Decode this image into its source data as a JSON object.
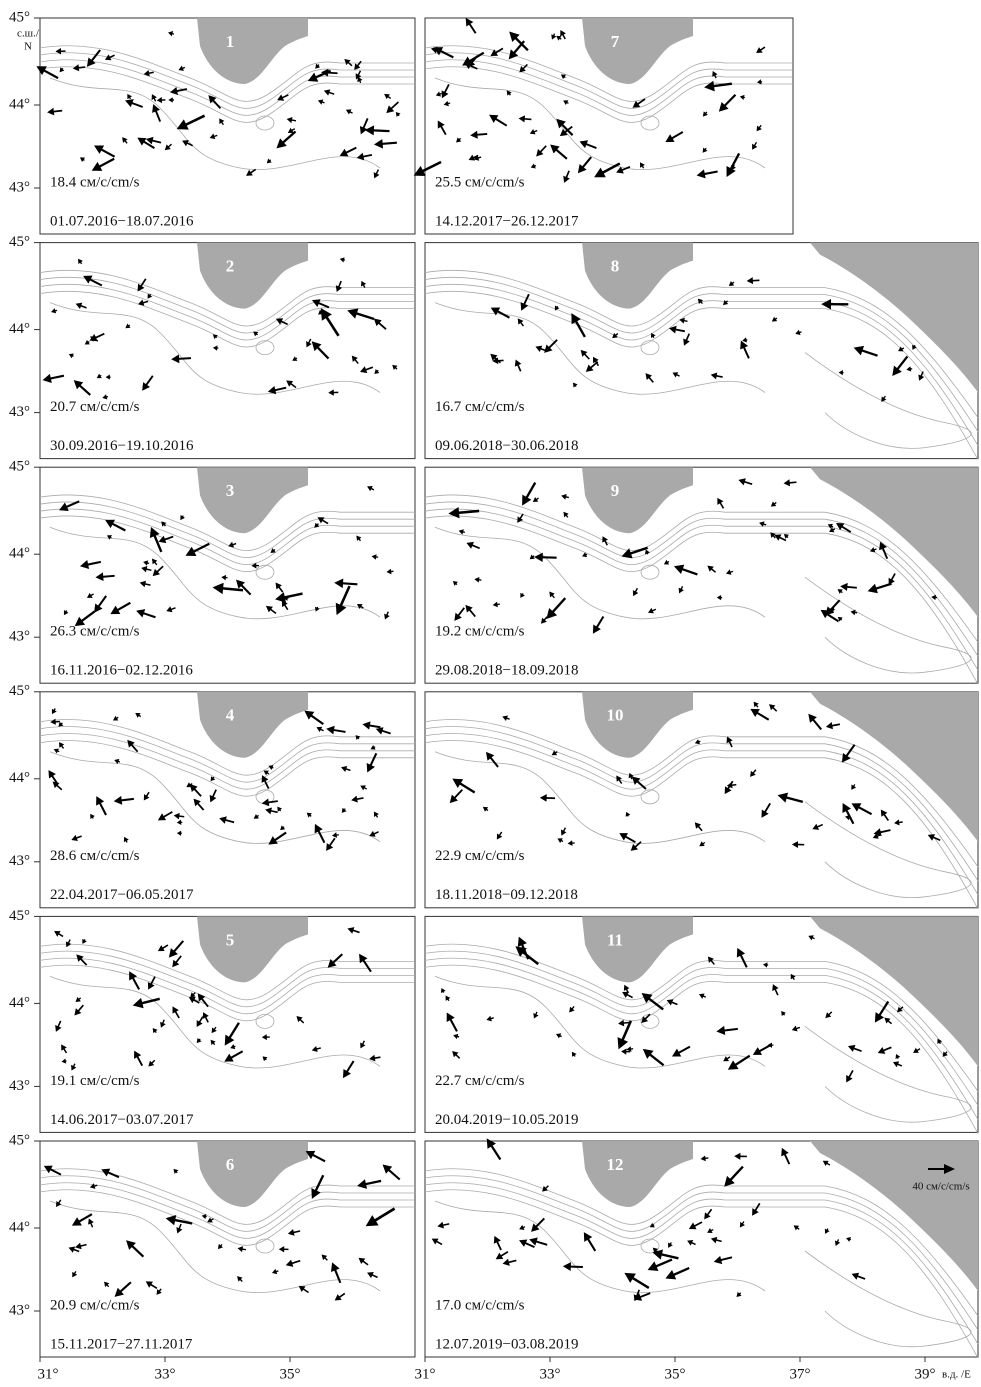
{
  "axes": {
    "lat_ticks": [
      "45°",
      "44°",
      "43°"
    ],
    "lat_unit": [
      "с.ш./",
      "N"
    ],
    "lon_ticks_left": [
      "31°",
      "33°",
      "35°"
    ],
    "lon_ticks_right": [
      "31°",
      "33°",
      "35°",
      "37°",
      "39°"
    ],
    "lon_unit": "в.д. /E"
  },
  "scale_label": "40 см/с/cm/s",
  "panels": [
    {
      "number": "1",
      "speed": "18.4 см/с/cm/s",
      "dates": "01.07.2016−18.07.2016"
    },
    {
      "number": "2",
      "speed": "20.7 см/с/cm/s",
      "dates": "30.09.2016−19.10.2016"
    },
    {
      "number": "3",
      "speed": "26.3 см/с/cm/s",
      "dates": "16.11.2016−02.12.2016"
    },
    {
      "number": "4",
      "speed": "28.6 см/с/cm/s",
      "dates": "22.04.2017−06.05.2017"
    },
    {
      "number": "5",
      "speed": "19.1 см/с/cm/s",
      "dates": "14.06.2017−03.07.2017"
    },
    {
      "number": "6",
      "speed": "20.9 см/с/cm/s",
      "dates": "15.11.2017−27.11.2017"
    },
    {
      "number": "7",
      "speed": "25.5 см/с/cm/s",
      "dates": "14.12.2017−26.12.2017"
    },
    {
      "number": "8",
      "speed": "16.7 см/с/cm/s",
      "dates": "09.06.2018−30.06.2018"
    },
    {
      "number": "9",
      "speed": "19.2 см/с/cm/s",
      "dates": "29.08.2018−18.09.2018"
    },
    {
      "number": "10",
      "speed": "22.9 см/с/cm/s",
      "dates": "18.11.2018−09.12.2018"
    },
    {
      "number": "11",
      "speed": "22.7 см/с/cm/s",
      "dates": "20.04.2019−10.05.2019"
    },
    {
      "number": "12",
      "speed": "17.0 см/с/cm/s",
      "dates": "12.07.2019−03.08.2019"
    }
  ]
}
